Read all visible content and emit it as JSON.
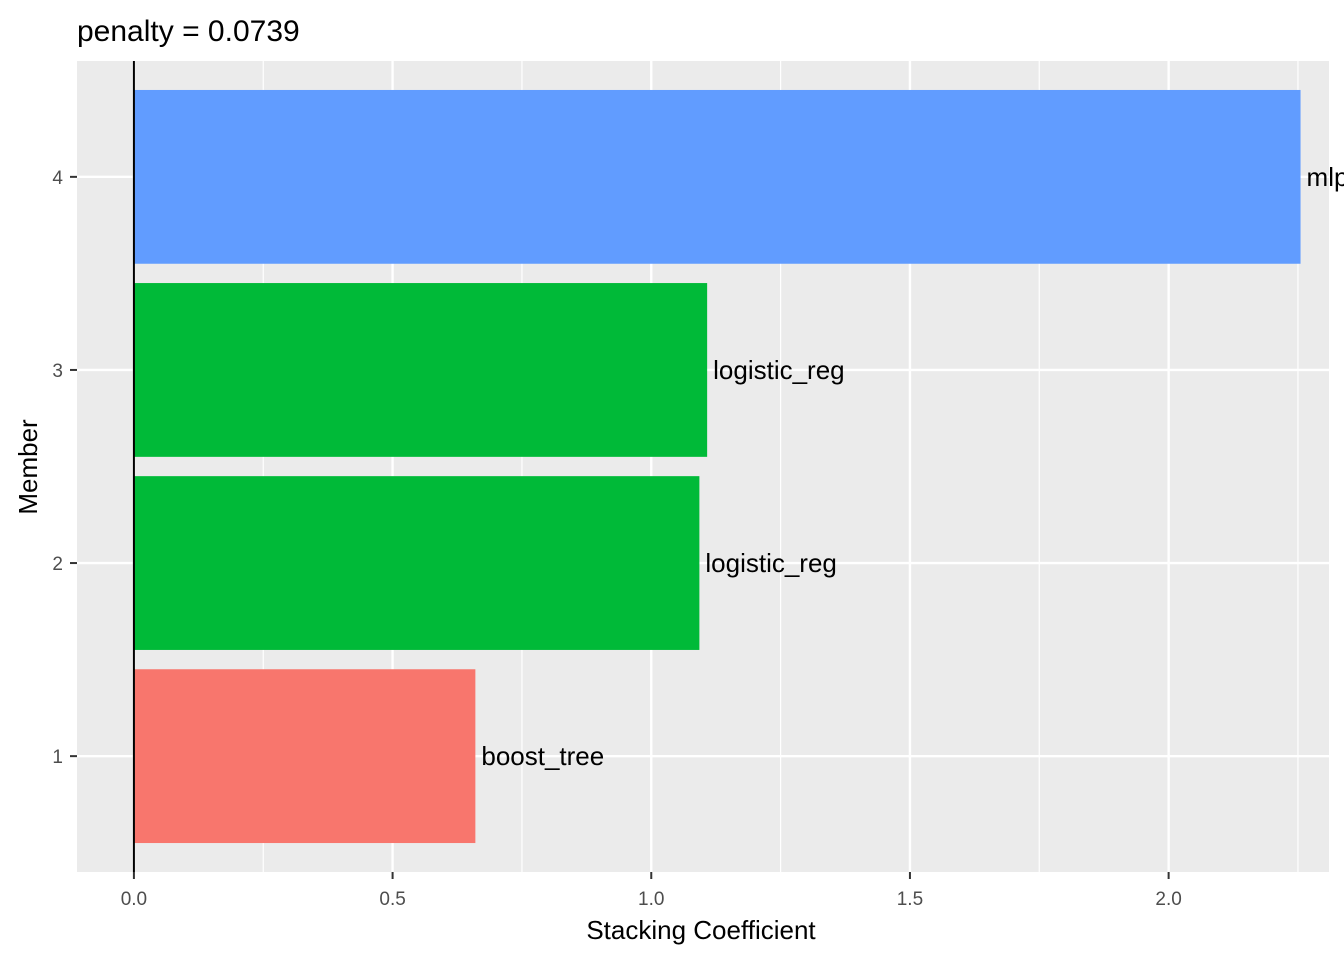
{
  "chart_data": {
    "type": "bar",
    "orientation": "horizontal",
    "title": "penalty = 0.0739",
    "xlabel": "Stacking Coefficient",
    "ylabel": "Member",
    "xlim": [
      -0.11,
      2.31
    ],
    "xticks": [
      0.0,
      0.5,
      1.0,
      1.5,
      2.0
    ],
    "xtick_labels": [
      "0.0",
      "0.5",
      "1.0",
      "1.5",
      "2.0"
    ],
    "categories": [
      "1",
      "2",
      "3",
      "4"
    ],
    "values": [
      0.66,
      1.093,
      1.108,
      2.255
    ],
    "bar_labels": [
      "boost_tree",
      "logistic_reg",
      "logistic_reg",
      "mlp"
    ],
    "bar_colors": [
      "#F8766D",
      "#00BA38",
      "#00BA38",
      "#619CFF"
    ],
    "grid": true,
    "legend": "none",
    "background_color": "#EBEBEB",
    "grid_color": "#FFFFFF",
    "zero_line": true
  }
}
